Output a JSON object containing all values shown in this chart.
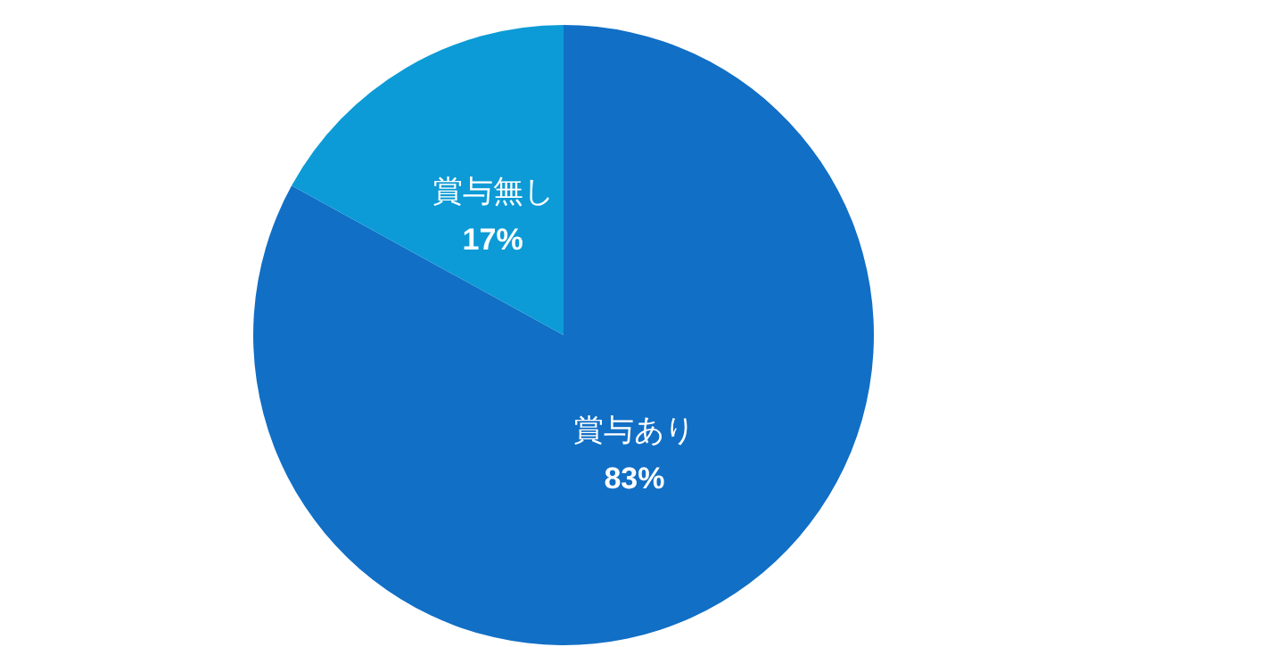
{
  "chart_data": {
    "type": "pie",
    "categories": [
      "賞与あり",
      "賞与無し"
    ],
    "values": [
      83,
      17
    ],
    "colors": [
      "#116fc6",
      "#0c9bd6"
    ],
    "value_labels": [
      "83%",
      "17%"
    ]
  }
}
